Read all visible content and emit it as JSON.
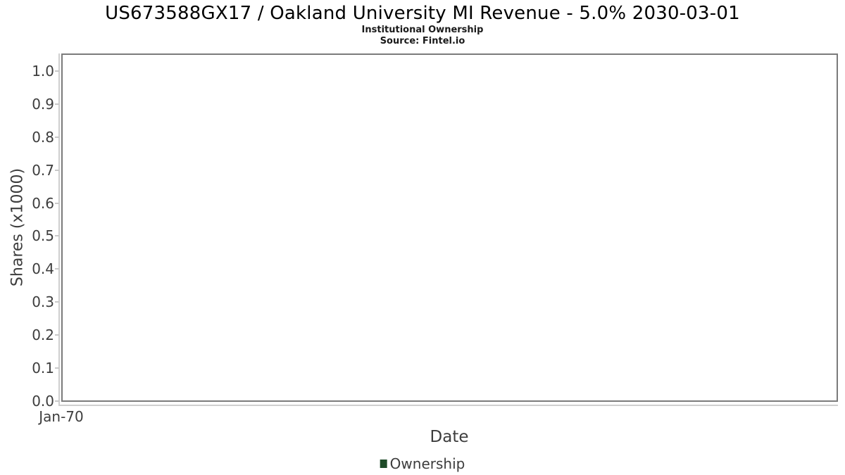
{
  "page": {
    "background": "#ffffff"
  },
  "chart_data": {
    "type": "bar",
    "title": "US673588GX17 / Oakland University MI Revenue - 5.0% 2030-03-01",
    "subtitle": "Institutional Ownership",
    "source": "Source: Fintel.io",
    "xlabel": "Date",
    "ylabel": "Shares (x1000)",
    "ylim": [
      0,
      1.053
    ],
    "yticks": [
      0.0,
      0.1,
      0.2,
      0.3,
      0.4,
      0.5,
      0.6,
      0.7,
      0.8,
      0.9,
      1.0
    ],
    "ytick_labels": [
      "0.0",
      "0.1",
      "0.2",
      "0.3",
      "0.4",
      "0.5",
      "0.6",
      "0.7",
      "0.8",
      "0.9",
      "1.0"
    ],
    "xtick_labels": [
      "Jan-70"
    ],
    "grid": true,
    "legend_position": "bottom-center",
    "series": [
      {
        "name": "Ownership",
        "color": "#1e4b28",
        "x": [],
        "values": []
      }
    ],
    "colors": {
      "plot_border": "#7b7b7b",
      "axis_line": "#cfcfcf",
      "gridline": "#dcdcdc",
      "tick_mark": "#c9c9c9",
      "axis_text": "#3d3d3d",
      "title_text": "#000000"
    }
  }
}
